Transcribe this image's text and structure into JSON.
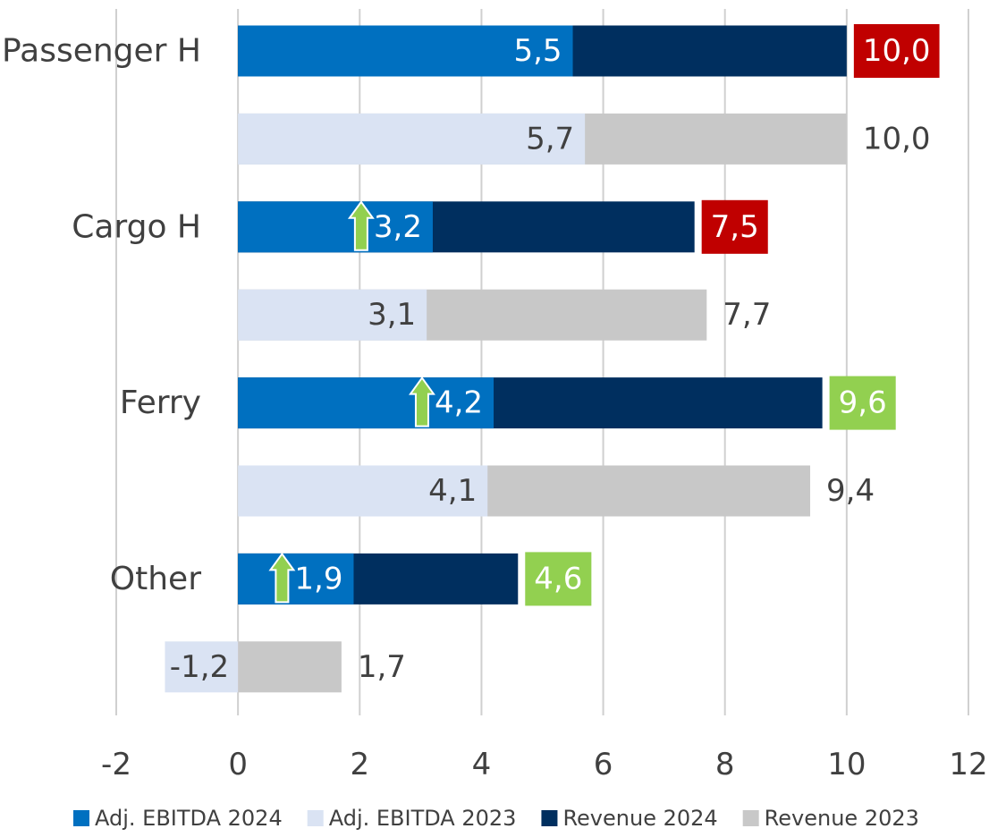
{
  "chart_data": {
    "type": "bar",
    "orientation": "horizontal",
    "categories": [
      "Passenger H",
      "Cargo H",
      "Ferry",
      "Other"
    ],
    "series": [
      {
        "name": "Adj. EBITDA 2024",
        "color": "#0070c0",
        "year": 2024,
        "values": [
          5.5,
          3.2,
          4.2,
          1.9
        ],
        "value_labels": [
          "5,5",
          "3,2",
          "4,2",
          "1,9"
        ],
        "up_arrow": [
          false,
          true,
          true,
          true
        ]
      },
      {
        "name": "Adj. EBITDA 2023",
        "color": "#dae3f3",
        "year": 2023,
        "values": [
          5.7,
          3.1,
          4.1,
          -1.2
        ],
        "value_labels": [
          "5,7",
          "3,1",
          "4,1",
          "-1,2"
        ]
      },
      {
        "name": "Revenue 2024",
        "color": "#002f5f",
        "year": 2024,
        "values": [
          10.0,
          7.5,
          9.6,
          4.6
        ],
        "value_labels": [
          "10,0",
          "7,5",
          "9,6",
          "4,6"
        ],
        "label_colors": [
          "#c00000",
          "#c00000",
          "#92d050",
          "#92d050"
        ]
      },
      {
        "name": "Revenue 2023",
        "color": "#c8c8c8",
        "year": 2023,
        "values": [
          10.0,
          7.7,
          9.4,
          1.7
        ],
        "value_labels": [
          "10,0",
          "7,7",
          "9,4",
          "1,7"
        ]
      }
    ],
    "xlim": [
      -2,
      12
    ],
    "xticks": [
      -2,
      0,
      2,
      4,
      6,
      8,
      10,
      12
    ],
    "grid": true,
    "legend": "bottom"
  }
}
